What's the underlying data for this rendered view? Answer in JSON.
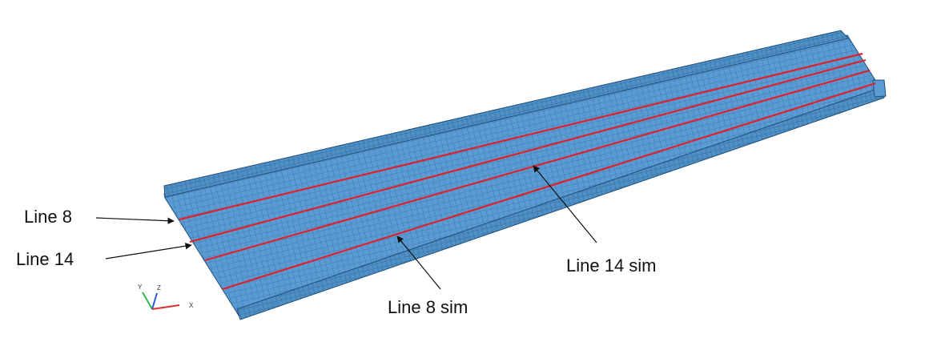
{
  "colors": {
    "mesh_fill": "#5b9bd3",
    "mesh_dark": "#2f6d9f",
    "mesh_line": "#1f4f78",
    "flange_fill": "#6aa7db",
    "measurement_line": "#e0202a",
    "text": "#111111"
  },
  "labels": {
    "line8": "Line 8",
    "line14": "Line 14",
    "line14_sim": "Line 14 sim",
    "line8_sim": "Line 8 sim"
  },
  "triad": {
    "y": "Y",
    "z": "Z",
    "x": "X"
  }
}
